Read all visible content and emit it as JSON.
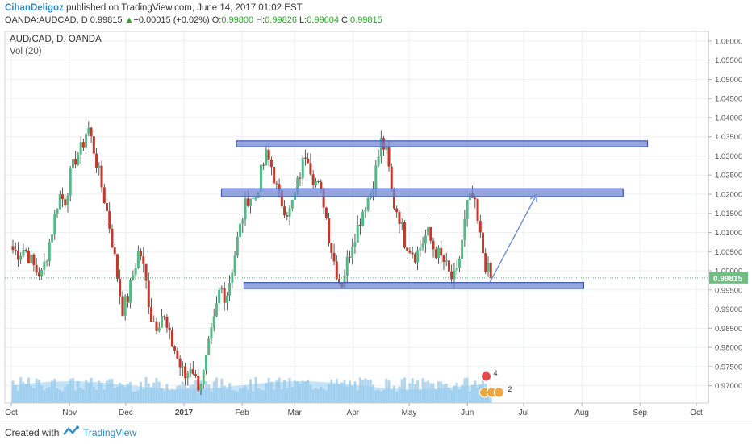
{
  "header": {
    "author": "CihanDeligoz",
    "published": " published on TradingView.com, June 14, 2017 01:02 EST",
    "symbol": "OANDA:AUDCAD, D",
    "last": "0.99815",
    "change_arrow": "▲",
    "change": "+0.00015 (+0.02%)",
    "o_label": "O:",
    "o": "0.99800",
    "h_label": "H:",
    "h": "0.99826",
    "l_label": "L:",
    "l": "0.99604",
    "c_label": "C:",
    "c": "0.99815"
  },
  "footer": {
    "created": "Created with",
    "brand": "TradingView"
  },
  "colors": {
    "up": "#53b987",
    "down": "#c0392b",
    "zone_fill": "#7087d6",
    "zone_border": "#3c5bb0",
    "arrow": "#6e8fd2",
    "volume": "#a9d2ec",
    "vol_ma": "#8ec9ef",
    "last_tag": "#6dbf82",
    "accent": "#2e8bc6"
  },
  "chart_data": {
    "type": "candlestick",
    "title": "AUD/CAD, D, OANDA",
    "indicator": "Vol (20)",
    "ylim": [
      0.9655,
      1.0625
    ],
    "y_ticks": [
      "1.06000",
      "1.05500",
      "1.05000",
      "1.04500",
      "1.04000",
      "1.03500",
      "1.03000",
      "1.02500",
      "1.02000",
      "1.01500",
      "1.01000",
      "1.00500",
      "1.00000",
      "0.99500",
      "0.99000",
      "0.98500",
      "0.98000",
      "0.97500",
      "0.97000"
    ],
    "x_ticks": [
      "Oct",
      "Nov",
      "Dec",
      "2017",
      "Feb",
      "Mar",
      "Apr",
      "May",
      "Jun",
      "Jul",
      "Aug",
      "Sep",
      "Oct"
    ],
    "last_price": "0.99815",
    "close_path": [
      1.0055,
      1.0045,
      1.006,
      1.003,
      1.0,
      0.999,
      1.005,
      1.012,
      1.02,
      1.018,
      1.025,
      1.03,
      1.032,
      1.038,
      1.032,
      1.025,
      1.018,
      1.01,
      1.0,
      0.99,
      0.993,
      1.0,
      1.006,
      0.998,
      0.988,
      0.986,
      0.989,
      0.983,
      0.98,
      0.975,
      0.972,
      0.976,
      0.97,
      0.972,
      0.98,
      0.987,
      0.996,
      0.993,
      1.0,
      1.008,
      1.015,
      1.02,
      1.018,
      1.025,
      1.03,
      1.027,
      1.02,
      1.017,
      1.015,
      1.02,
      1.026,
      1.032,
      1.025,
      1.022,
      1.018,
      1.008,
      1.001,
      0.996,
      1.002,
      1.008,
      1.012,
      1.017,
      1.02,
      1.026,
      1.034,
      1.03,
      1.018,
      1.015,
      1.008,
      1.006,
      1.004,
      1.007,
      1.01,
      1.006,
      1.004,
      1.002,
      0.998,
      0.998,
      1.008,
      1.018,
      1.019,
      1.01,
      1.002,
      0.9982
    ],
    "zones": [
      {
        "name": "upper-resistance",
        "from": "Jan 29",
        "to": "Sep 5",
        "top": 1.0335,
        "bottom": 1.033
      },
      {
        "name": "middle-resistance",
        "from": "Jan 21",
        "to": "Aug 23",
        "top": 1.021,
        "bottom": 1.02
      },
      {
        "name": "support",
        "from": "Feb 2",
        "to": "Aug 2",
        "top": 0.9965,
        "bottom": 0.996
      }
    ],
    "projection": {
      "from_price": 0.997,
      "to_price": 1.02,
      "from": "Jun 13",
      "to": "Jul 8"
    }
  }
}
